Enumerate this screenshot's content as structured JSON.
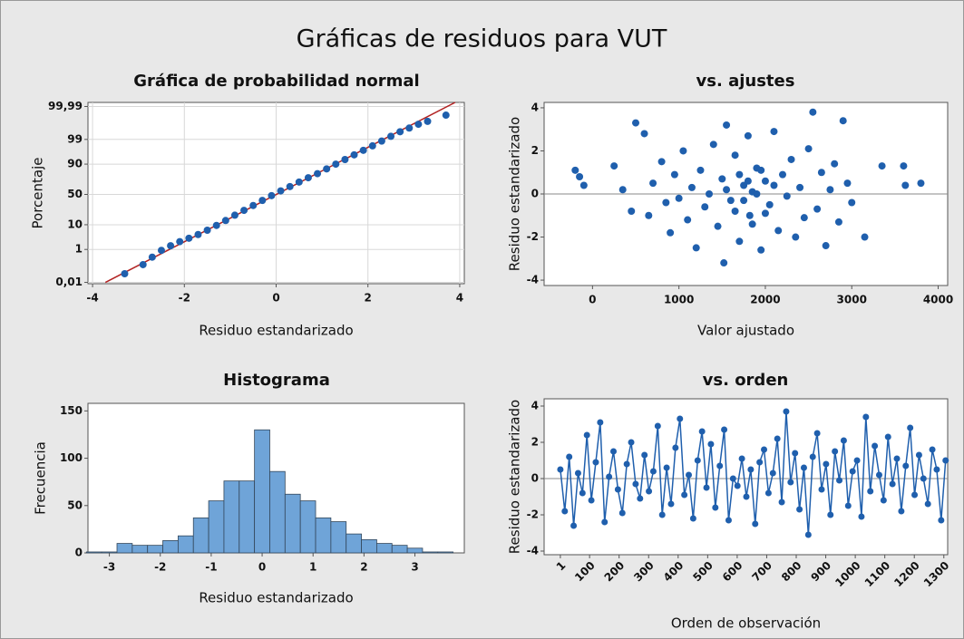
{
  "title": "Gráficas de residuos para VUT",
  "chart_data": [
    {
      "type": "probability",
      "title": "Gráfica de probabilidad normal",
      "xlabel": "Residuo estandarizado",
      "ylabel": "Porcentaje",
      "x": [
        -3.3,
        -2.9,
        -2.7,
        -2.5,
        -2.3,
        -2.1,
        -1.9,
        -1.7,
        -1.5,
        -1.3,
        -1.1,
        -0.9,
        -0.7,
        -0.5,
        -0.3,
        -0.1,
        0.1,
        0.3,
        0.5,
        0.7,
        0.9,
        1.1,
        1.3,
        1.5,
        1.7,
        1.9,
        2.1,
        2.3,
        2.5,
        2.7,
        2.9,
        3.1,
        3.3,
        3.7
      ],
      "values": [
        0.04,
        0.15,
        0.4,
        0.9,
        1.5,
        2.3,
        3.2,
        4.5,
        6.5,
        9.5,
        13.5,
        19,
        25,
        32,
        40,
        48,
        56,
        63,
        70,
        76,
        81,
        86,
        90,
        93,
        95.3,
        96.9,
        98,
        98.8,
        99.3,
        99.6,
        99.75,
        99.85,
        99.9,
        99.96
      ],
      "color": "#1f5fad",
      "fit_line": {
        "x": [
          -3.72,
          3.9
        ],
        "values": [
          0.01,
          99.995
        ],
        "color": "#b22222"
      },
      "xlim": [
        -4.1,
        4.1
      ],
      "xticks": [
        -4,
        -2,
        0,
        2,
        4
      ],
      "ylim": [
        0.008,
        99.995
      ],
      "yscale": "probability",
      "yticks": [
        {
          "value": 0.01,
          "label": "0,01"
        },
        1,
        10,
        50,
        90,
        99,
        {
          "value": 99.99,
          "label": "99,99"
        }
      ],
      "grid": true
    },
    {
      "type": "scatter",
      "title": "vs. ajustes",
      "xlabel": "Valor ajustado",
      "ylabel": "Residuo estandarizado",
      "x": [
        -200,
        -150,
        -100,
        250,
        350,
        450,
        500,
        600,
        650,
        700,
        800,
        850,
        900,
        950,
        1000,
        1050,
        1100,
        1150,
        1200,
        1250,
        1300,
        1350,
        1400,
        1450,
        1500,
        1520,
        1550,
        1600,
        1650,
        1700,
        1750,
        1800,
        1820,
        1850,
        1900,
        1950,
        2000,
        2050,
        2100,
        2150,
        2200,
        2250,
        2300,
        2350,
        2400,
        2450,
        2500,
        2550,
        2600,
        2650,
        2700,
        2750,
        2800,
        2850,
        2900,
        2950,
        3000,
        3150,
        3350,
        3600,
        3620,
        3800,
        1550,
        1650,
        1700,
        1750,
        1800,
        1850,
        1900,
        1950,
        2000,
        2100
      ],
      "values": [
        1.1,
        0.8,
        0.4,
        1.3,
        0.2,
        -0.8,
        3.3,
        2.8,
        -1.0,
        0.5,
        1.5,
        -0.4,
        -1.8,
        0.9,
        -0.2,
        2.0,
        -1.2,
        0.3,
        -2.5,
        1.1,
        -0.6,
        0.0,
        2.3,
        -1.5,
        0.7,
        -3.2,
        3.2,
        -0.3,
        1.8,
        -2.2,
        0.4,
        2.7,
        -1.0,
        0.1,
        1.2,
        -2.6,
        0.6,
        -0.5,
        2.9,
        -1.7,
        0.9,
        -0.1,
        1.6,
        -2.0,
        0.3,
        -1.1,
        2.1,
        3.8,
        -0.7,
        1.0,
        -2.4,
        0.2,
        1.4,
        -1.3,
        3.4,
        0.5,
        -0.4,
        -2.0,
        1.3,
        1.3,
        0.4,
        0.5,
        0.2,
        -0.8,
        0.9,
        -0.3,
        0.6,
        -1.4,
        0.0,
        1.1,
        -0.9,
        0.4
      ],
      "color": "#1f5fad",
      "hline": 0,
      "xlim": [
        -560,
        4110
      ],
      "xticks": [
        0,
        1000,
        2000,
        3000,
        4000
      ],
      "ylim": [
        -4.25,
        4.25
      ],
      "yticks": [
        -4,
        -2,
        0,
        2,
        4
      ],
      "grid": false
    },
    {
      "type": "histogram",
      "title": "Histograma",
      "xlabel": "Residuo estandarizado",
      "ylabel": "Frecuencia",
      "bins": [
        -3.45,
        -3.15,
        -2.85,
        -2.55,
        -2.25,
        -1.95,
        -1.65,
        -1.35,
        -1.05,
        -0.75,
        -0.45,
        -0.15,
        0.15,
        0.45,
        0.75,
        1.05,
        1.35,
        1.65,
        1.95,
        2.25,
        2.55,
        2.85,
        3.15,
        3.45,
        3.75
      ],
      "values": [
        1,
        1,
        10,
        8,
        8,
        13,
        18,
        37,
        55,
        76,
        76,
        130,
        86,
        62,
        55,
        37,
        33,
        20,
        14,
        10,
        8,
        5,
        1,
        1
      ],
      "color": "#6fa4d8",
      "edgecolor": "#33475b",
      "xlim": [
        -3.42,
        3.97
      ],
      "xticks": [
        -3,
        -2,
        -1,
        0,
        1,
        2,
        3
      ],
      "ylim": [
        0,
        158
      ],
      "yticks": [
        0,
        50,
        100,
        150
      ],
      "grid": false
    },
    {
      "type": "line",
      "title": "vs. orden",
      "xlabel": "Orden de observación",
      "ylabel": "Residuo estandarizado",
      "x": [
        1,
        16,
        31,
        46,
        61,
        76,
        91,
        106,
        121,
        136,
        151,
        166,
        181,
        196,
        211,
        226,
        241,
        256,
        271,
        286,
        301,
        316,
        331,
        346,
        361,
        376,
        391,
        406,
        421,
        436,
        451,
        466,
        481,
        496,
        511,
        526,
        541,
        556,
        571,
        586,
        601,
        616,
        631,
        646,
        661,
        676,
        691,
        706,
        721,
        736,
        751,
        766,
        781,
        796,
        811,
        826,
        841,
        856,
        871,
        886,
        901,
        916,
        931,
        946,
        961,
        976,
        991,
        1006,
        1021,
        1036,
        1051,
        1066,
        1081,
        1096,
        1111,
        1126,
        1141,
        1156,
        1171,
        1186,
        1201,
        1216,
        1231,
        1246,
        1261,
        1276,
        1291,
        1306
      ],
      "values": [
        0.5,
        -1.8,
        1.2,
        -2.6,
        0.3,
        -0.8,
        2.4,
        -1.2,
        0.9,
        3.1,
        -2.4,
        0.1,
        1.5,
        -0.6,
        -1.9,
        0.8,
        2.0,
        -0.3,
        -1.1,
        1.3,
        -0.7,
        0.4,
        2.9,
        -2.0,
        0.6,
        -1.4,
        1.7,
        3.3,
        -0.9,
        0.2,
        -2.2,
        1.0,
        2.6,
        -0.5,
        1.9,
        -1.6,
        0.7,
        2.7,
        -2.3,
        0.0,
        -0.4,
        1.1,
        -1.0,
        0.5,
        -2.5,
        0.9,
        1.6,
        -0.8,
        0.3,
        2.2,
        -1.3,
        3.7,
        -0.2,
        1.4,
        -1.7,
        0.6,
        -3.1,
        1.2,
        2.5,
        -0.6,
        0.8,
        -2.0,
        1.5,
        -0.1,
        2.1,
        -1.5,
        0.4,
        1.0,
        -2.1,
        3.4,
        -0.7,
        1.8,
        0.2,
        -1.2,
        2.3,
        -0.3,
        1.1,
        -1.8,
        0.7,
        2.8,
        -0.9,
        1.3,
        0.0,
        -1.4,
        1.6,
        0.5,
        -2.3,
        1.0
      ],
      "color": "#1f5fad",
      "hline": 0,
      "xlim": [
        -54,
        1313
      ],
      "xticks": [
        1,
        100,
        200,
        300,
        400,
        500,
        600,
        700,
        800,
        900,
        1000,
        1100,
        1200,
        1300
      ],
      "ylim": [
        -4.2,
        4.4
      ],
      "yticks": [
        -4,
        -2,
        0,
        2,
        4
      ],
      "grid": false
    }
  ]
}
